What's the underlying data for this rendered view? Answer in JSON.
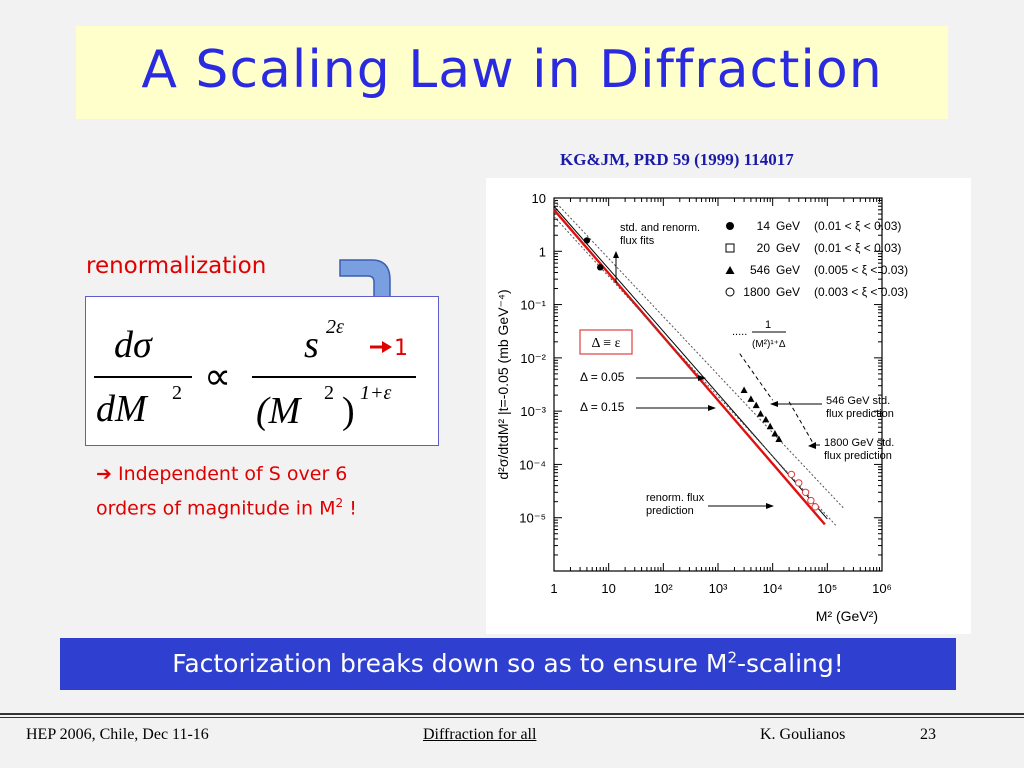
{
  "slide": {
    "title": "A Scaling Law in Diffraction",
    "reference": "KG&JM, PRD 59 (1999) 114017",
    "renorm_label": "renormalization",
    "formula": {
      "lhs_num": "dσ",
      "lhs_den": "dM",
      "lhs_den_exp": "2",
      "prop": "∝",
      "rhs_num": "s",
      "rhs_num_exp": "2ε",
      "rhs_den": "(M",
      "rhs_den_sq": "2",
      "rhs_den_close": ")",
      "rhs_den_exp": "1+ε",
      "arrow_to": "1"
    },
    "note_arrow": "➔",
    "note_line1": " Independent of S over 6",
    "note_line2": "orders of magnitude in M",
    "note_sup": "2",
    "note_end": " !",
    "banner_text": "Factorization breaks down so as to ensure M",
    "banner_sup": "2",
    "banner_end": "-scaling!"
  },
  "footer": {
    "left": "HEP 2006, Chile, Dec 11-16",
    "center": "Diffraction for all",
    "author": "K. Goulianos",
    "page": "23"
  },
  "chart_data": {
    "type": "scatter",
    "xlabel": "M² (GeV²)",
    "ylabel": "d²σ/dtdM² |t=-0.05 (mb GeV⁻⁴)",
    "xscale": "log",
    "yscale": "log",
    "xlim": [
      1,
      1000000
    ],
    "ylim": [
      1e-06,
      10
    ],
    "x_ticks": [
      "1",
      "10",
      "10²",
      "10³",
      "10⁴",
      "10⁵",
      "10⁶"
    ],
    "y_ticks": [
      "10",
      "1",
      "10⁻¹",
      "10⁻²",
      "10⁻³",
      "10⁻⁴",
      "10⁻⁵"
    ],
    "legend": [
      {
        "marker": "filled-circle",
        "energy": "14",
        "unit": "GeV",
        "range": "(0.01 < ξ < 0.03)"
      },
      {
        "marker": "open-square",
        "energy": "20",
        "unit": "GeV",
        "range": "(0.01 < ξ < 0.03)"
      },
      {
        "marker": "filled-triangle",
        "energy": "546",
        "unit": "GeV",
        "range": "(0.005 < ξ < 0.03)"
      },
      {
        "marker": "open-circle",
        "energy": "1800",
        "unit": "GeV",
        "range": "(0.003 < ξ < 0.03)"
      }
    ],
    "legend_placement": "top-right",
    "annotations": {
      "fits_label_1": "std. and renorm.",
      "fits_label_2": "flux fits",
      "powerlaw_prefix": ".....",
      "powerlaw_num": "1",
      "powerlaw_den": "(M²)¹⁺Δ",
      "delta_def": "Δ ≡ ε",
      "delta1": "Δ = 0.05",
      "delta2": "Δ = 0.15",
      "std546_1": "546 GeV  std.",
      "std546_2": "flux prediction",
      "std1800_1": "1800 GeV  std.",
      "std1800_2": "flux prediction",
      "renorm_1": "renorm. flux",
      "renorm_2": "prediction"
    },
    "series": [
      {
        "name": "14 GeV",
        "marker": "filled-circle",
        "points": [
          [
            4,
            1.6
          ],
          [
            7,
            0.5
          ]
        ]
      },
      {
        "name": "546 GeV",
        "marker": "filled-triangle",
        "points": [
          [
            3000,
            0.0025
          ],
          [
            4000,
            0.0017
          ],
          [
            5000,
            0.0013
          ],
          [
            6000,
            0.0009
          ],
          [
            7500,
            0.0007
          ],
          [
            9000,
            0.00052
          ],
          [
            11000,
            0.00038
          ],
          [
            13000,
            0.0003
          ]
        ]
      },
      {
        "name": "1800 GeV",
        "marker": "open-circle",
        "points": [
          [
            22000,
            6.5e-05
          ],
          [
            30000,
            4.5e-05
          ],
          [
            40000,
            3e-05
          ],
          [
            50000,
            2.1e-05
          ],
          [
            60000,
            1.6e-05
          ]
        ]
      }
    ],
    "lines": [
      {
        "name": "renorm. flux fit",
        "color": "#e01010",
        "from": [
          1,
          6
        ],
        "to": [
          90000,
          7.5e-06
        ]
      },
      {
        "name": "Δ = 0.05",
        "color": "#000000",
        "style": "solid",
        "from": [
          1,
          7
        ],
        "to": [
          100000,
          9.5e-06
        ]
      },
      {
        "name": "Δ = 0.15",
        "color": "#555555",
        "style": "dotted",
        "from": [
          1,
          4.5
        ],
        "to": [
          150000,
          6.8e-06
        ]
      },
      {
        "name": "power law",
        "color": "#555555",
        "style": "dotted",
        "from": [
          1,
          9
        ],
        "to": [
          200000,
          1.5e-05
        ]
      },
      {
        "name": "546 GeV std. flux prediction",
        "color": "#000000",
        "style": "dashed",
        "from": [
          2500,
          0.012
        ],
        "to": [
          10000,
          0.0016
        ]
      },
      {
        "name": "1800 GeV std. flux prediction",
        "color": "#000000",
        "style": "dashed",
        "from": [
          20000,
          0.0015
        ],
        "to": [
          55000,
          0.00025
        ]
      }
    ]
  }
}
